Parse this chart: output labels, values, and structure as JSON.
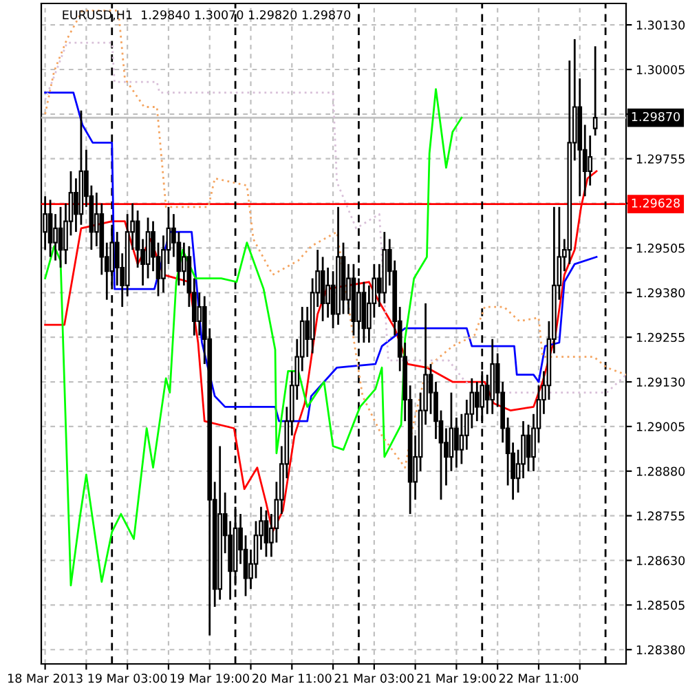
{
  "chart_data": {
    "type": "candlestick",
    "title": "EURUSD,H1  1.29840 1.30070 1.29820 1.29870",
    "x": [
      "2013-03-18T11:00",
      "2013-03-18T12:00",
      "2013-03-18T13:00",
      "2013-03-18T14:00",
      "2013-03-18T15:00",
      "2013-03-18T16:00",
      "2013-03-18T17:00",
      "2013-03-18T18:00",
      "2013-03-18T19:00",
      "2013-03-18T20:00",
      "2013-03-18T21:00",
      "2013-03-18T22:00",
      "2013-03-18T23:00",
      "2013-03-19T00:00",
      "2013-03-19T01:00",
      "2013-03-19T02:00",
      "2013-03-19T03:00",
      "2013-03-19T04:00",
      "2013-03-19T05:00",
      "2013-03-19T06:00",
      "2013-03-19T07:00",
      "2013-03-19T08:00",
      "2013-03-19T09:00",
      "2013-03-19T10:00",
      "2013-03-19T11:00",
      "2013-03-19T12:00",
      "2013-03-19T13:00",
      "2013-03-19T14:00",
      "2013-03-19T15:00",
      "2013-03-19T16:00",
      "2013-03-19T17:00",
      "2013-03-19T18:00",
      "2013-03-19T19:00",
      "2013-03-19T20:00",
      "2013-03-19T21:00",
      "2013-03-19T22:00",
      "2013-03-19T23:00",
      "2013-03-20T00:00",
      "2013-03-20T01:00",
      "2013-03-20T02:00",
      "2013-03-20T03:00",
      "2013-03-20T04:00",
      "2013-03-20T05:00",
      "2013-03-20T06:00",
      "2013-03-20T07:00",
      "2013-03-20T08:00",
      "2013-03-20T09:00",
      "2013-03-20T10:00",
      "2013-03-20T11:00",
      "2013-03-20T12:00",
      "2013-03-20T13:00",
      "2013-03-20T14:00",
      "2013-03-20T15:00",
      "2013-03-20T16:00",
      "2013-03-20T17:00",
      "2013-03-20T18:00",
      "2013-03-20T19:00",
      "2013-03-20T20:00",
      "2013-03-20T21:00",
      "2013-03-20T22:00",
      "2013-03-20T23:00",
      "2013-03-21T00:00",
      "2013-03-21T01:00",
      "2013-03-21T02:00",
      "2013-03-21T03:00",
      "2013-03-21T04:00",
      "2013-03-21T05:00",
      "2013-03-21T06:00",
      "2013-03-21T07:00",
      "2013-03-21T08:00",
      "2013-03-21T09:00",
      "2013-03-21T10:00",
      "2013-03-21T11:00",
      "2013-03-21T12:00",
      "2013-03-21T13:00",
      "2013-03-21T14:00",
      "2013-03-21T15:00",
      "2013-03-21T16:00",
      "2013-03-21T17:00",
      "2013-03-21T18:00",
      "2013-03-21T19:00",
      "2013-03-21T20:00",
      "2013-03-21T21:00",
      "2013-03-21T22:00",
      "2013-03-21T23:00",
      "2013-03-22T00:00",
      "2013-03-22T01:00",
      "2013-03-22T02:00",
      "2013-03-22T03:00",
      "2013-03-22T04:00",
      "2013-03-22T05:00",
      "2013-03-22T06:00",
      "2013-03-22T07:00",
      "2013-03-22T08:00",
      "2013-03-22T09:00",
      "2013-03-22T10:00",
      "2013-03-22T11:00",
      "2013-03-22T12:00",
      "2013-03-22T13:00",
      "2013-03-22T14:00",
      "2013-03-22T15:00",
      "2013-03-22T16:00",
      "2013-03-22T17:00",
      "2013-03-22T18:00",
      "2013-03-22T19:00",
      "2013-03-22T20:00",
      "2013-03-22T21:00",
      "2013-03-22T22:00"
    ],
    "ohlc": [
      [
        1.2955,
        1.2965,
        1.295,
        1.296
      ],
      [
        1.296,
        1.2964,
        1.2948,
        1.2952
      ],
      [
        1.2952,
        1.296,
        1.2947,
        1.2956
      ],
      [
        1.2956,
        1.2962,
        1.2945,
        1.295
      ],
      [
        1.295,
        1.2963,
        1.2946,
        1.2958
      ],
      [
        1.2958,
        1.2972,
        1.2954,
        1.2966
      ],
      [
        1.2966,
        1.297,
        1.2955,
        1.296
      ],
      [
        1.296,
        1.2989,
        1.2957,
        1.2972
      ],
      [
        1.2972,
        1.2978,
        1.2962,
        1.2965
      ],
      [
        1.2965,
        1.2968,
        1.295,
        1.2955
      ],
      [
        1.2955,
        1.2966,
        1.2951,
        1.296
      ],
      [
        1.296,
        1.2963,
        1.2943,
        1.2948
      ],
      [
        1.2948,
        1.2952,
        1.2936,
        1.2944
      ],
      [
        1.2944,
        1.2957,
        1.294,
        1.2952
      ],
      [
        1.2952,
        1.2955,
        1.294,
        1.2945
      ],
      [
        1.2945,
        1.2949,
        1.2934,
        1.294
      ],
      [
        1.294,
        1.296,
        1.2937,
        1.2955
      ],
      [
        1.2955,
        1.2963,
        1.295,
        1.2958
      ],
      [
        1.2958,
        1.2961,
        1.2945,
        1.295
      ],
      [
        1.295,
        1.2953,
        1.294,
        1.2946
      ],
      [
        1.2946,
        1.2959,
        1.2942,
        1.2955
      ],
      [
        1.2955,
        1.2958,
        1.2944,
        1.2948
      ],
      [
        1.2948,
        1.2952,
        1.2937,
        1.2942
      ],
      [
        1.2942,
        1.2954,
        1.2938,
        1.295
      ],
      [
        1.295,
        1.2962,
        1.2946,
        1.2956
      ],
      [
        1.2956,
        1.296,
        1.2948,
        1.2952
      ],
      [
        1.2952,
        1.2955,
        1.294,
        1.2944
      ],
      [
        1.2944,
        1.2952,
        1.294,
        1.2948
      ],
      [
        1.2948,
        1.2951,
        1.2934,
        1.2938
      ],
      [
        1.2938,
        1.2942,
        1.2926,
        1.293
      ],
      [
        1.293,
        1.2938,
        1.2926,
        1.2934
      ],
      [
        1.2934,
        1.2937,
        1.2918,
        1.2925
      ],
      [
        1.2925,
        1.2928,
        1.2842,
        1.288
      ],
      [
        1.288,
        1.2885,
        1.285,
        1.2855
      ],
      [
        1.2855,
        1.2895,
        1.2852,
        1.2876
      ],
      [
        1.2876,
        1.2882,
        1.2865,
        1.287
      ],
      [
        1.287,
        1.2874,
        1.2852,
        1.286
      ],
      [
        1.286,
        1.2878,
        1.2856,
        1.2872
      ],
      [
        1.2872,
        1.2876,
        1.2862,
        1.2866
      ],
      [
        1.2866,
        1.287,
        1.2853,
        1.2858
      ],
      [
        1.2858,
        1.2866,
        1.2855,
        1.2862
      ],
      [
        1.2862,
        1.2874,
        1.2858,
        1.287
      ],
      [
        1.287,
        1.2878,
        1.2866,
        1.2874
      ],
      [
        1.2874,
        1.2877,
        1.2864,
        1.2868
      ],
      [
        1.2868,
        1.2876,
        1.2864,
        1.2872
      ],
      [
        1.2872,
        1.2885,
        1.2868,
        1.288
      ],
      [
        1.288,
        1.2895,
        1.2876,
        1.289
      ],
      [
        1.289,
        1.2906,
        1.2886,
        1.2902
      ],
      [
        1.2902,
        1.2916,
        1.2898,
        1.2912
      ],
      [
        1.2912,
        1.2925,
        1.2908,
        1.292
      ],
      [
        1.292,
        1.2934,
        1.2916,
        1.293
      ],
      [
        1.293,
        1.2934,
        1.292,
        1.2925
      ],
      [
        1.2925,
        1.2942,
        1.2921,
        1.2938
      ],
      [
        1.2938,
        1.295,
        1.2934,
        1.2944
      ],
      [
        1.2944,
        1.2948,
        1.293,
        1.2935
      ],
      [
        1.2935,
        1.2945,
        1.2931,
        1.294
      ],
      [
        1.294,
        1.2944,
        1.2928,
        1.2932
      ],
      [
        1.2932,
        1.2962,
        1.2929,
        1.2948
      ],
      [
        1.2948,
        1.2952,
        1.2932,
        1.2936
      ],
      [
        1.2936,
        1.2946,
        1.2932,
        1.2942
      ],
      [
        1.2942,
        1.2946,
        1.2926,
        1.293
      ],
      [
        1.293,
        1.2942,
        1.2926,
        1.2938
      ],
      [
        1.2938,
        1.2941,
        1.2924,
        1.2928
      ],
      [
        1.2928,
        1.294,
        1.2924,
        1.2935
      ],
      [
        1.2935,
        1.2946,
        1.2931,
        1.2942
      ],
      [
        1.2942,
        1.2946,
        1.2934,
        1.2938
      ],
      [
        1.2938,
        1.2955,
        1.2935,
        1.295
      ],
      [
        1.295,
        1.2953,
        1.294,
        1.2944
      ],
      [
        1.2944,
        1.2947,
        1.2926,
        1.293
      ],
      [
        1.293,
        1.2934,
        1.2916,
        1.292
      ],
      [
        1.292,
        1.2924,
        1.2902,
        1.2908
      ],
      [
        1.2908,
        1.2912,
        1.2876,
        1.2885
      ],
      [
        1.2885,
        1.2898,
        1.288,
        1.2892
      ],
      [
        1.2892,
        1.291,
        1.2888,
        1.2905
      ],
      [
        1.2905,
        1.2935,
        1.2901,
        1.2915
      ],
      [
        1.2915,
        1.2918,
        1.2904,
        1.291
      ],
      [
        1.291,
        1.2913,
        1.2897,
        1.2902
      ],
      [
        1.2902,
        1.2905,
        1.288,
        1.2896
      ],
      [
        1.2896,
        1.29,
        1.2884,
        1.2892
      ],
      [
        1.2892,
        1.291,
        1.2888,
        1.29
      ],
      [
        1.29,
        1.2903,
        1.2889,
        1.2894
      ],
      [
        1.2894,
        1.2904,
        1.289,
        1.2898
      ],
      [
        1.2898,
        1.2908,
        1.2894,
        1.2904
      ],
      [
        1.2904,
        1.2914,
        1.29,
        1.291
      ],
      [
        1.291,
        1.2913,
        1.2902,
        1.2906
      ],
      [
        1.2906,
        1.2916,
        1.2902,
        1.2912
      ],
      [
        1.2912,
        1.2915,
        1.2904,
        1.2908
      ],
      [
        1.2908,
        1.2925,
        1.2904,
        1.2918
      ],
      [
        1.2918,
        1.2921,
        1.2906,
        1.291
      ],
      [
        1.291,
        1.2913,
        1.2896,
        1.29
      ],
      [
        1.29,
        1.2903,
        1.2884,
        1.2893
      ],
      [
        1.2893,
        1.2896,
        1.288,
        1.2886
      ],
      [
        1.2886,
        1.2894,
        1.2882,
        1.289
      ],
      [
        1.289,
        1.2902,
        1.2886,
        1.2898
      ],
      [
        1.2898,
        1.2901,
        1.2888,
        1.2892
      ],
      [
        1.2892,
        1.2904,
        1.2888,
        1.29
      ],
      [
        1.29,
        1.2912,
        1.2896,
        1.2908
      ],
      [
        1.2908,
        1.2916,
        1.2904,
        1.2912
      ],
      [
        1.2912,
        1.293,
        1.2908,
        1.2925
      ],
      [
        1.2925,
        1.2962,
        1.2921,
        1.294
      ],
      [
        1.294,
        1.2962,
        1.2936,
        1.2948
      ],
      [
        1.2948,
        1.2953,
        1.2944,
        1.295
      ],
      [
        1.295,
        1.3003,
        1.2946,
        1.298
      ],
      [
        1.298,
        1.3009,
        1.2975,
        1.299
      ],
      [
        1.299,
        1.2998,
        1.2965,
        1.2978
      ],
      [
        1.2978,
        1.2985,
        1.2965,
        1.2972
      ],
      [
        1.2972,
        1.2982,
        1.2968,
        1.2976
      ],
      [
        1.2984,
        1.3007,
        1.2982,
        1.2987
      ]
    ],
    "series": [
      {
        "type": "line",
        "color": "#ff0000",
        "x": [
          "2013-03-18T11:00",
          "2013-03-18T14:45",
          "2013-03-18T18:00",
          "2013-03-19T00:00",
          "2013-03-19T02:30",
          "2013-03-19T05:00",
          "2013-03-19T07:30",
          "2013-03-19T10:00",
          "2013-03-19T15:00",
          "2013-03-19T16:45",
          "2013-03-19T18:00",
          "2013-03-19T23:45",
          "2013-03-20T01:45",
          "2013-03-20T04:15",
          "2013-03-20T06:00",
          "2013-03-20T07:15",
          "2013-03-20T09:15",
          "2013-03-20T11:30",
          "2013-03-20T13:30",
          "2013-03-20T16:00",
          "2013-03-20T17:45",
          "2013-03-21T02:00",
          "2013-03-21T03:45",
          "2013-03-21T07:00",
          "2013-03-21T09:30",
          "2013-03-21T13:15",
          "2013-03-21T18:15",
          "2013-03-22T00:30",
          "2013-03-22T02:15",
          "2013-03-22T05:30",
          "2013-03-22T10:00",
          "2013-03-22T11:45",
          "2013-03-22T14:15",
          "2013-03-22T16:00",
          "2013-03-22T18:00",
          "2013-03-22T19:15",
          "2013-03-22T20:30",
          "2013-03-22T22:15"
        ],
        "values": [
          1.2929,
          1.2929,
          1.2956,
          1.2958,
          1.2958,
          1.2946,
          1.2953,
          1.2943,
          1.2941,
          1.2924,
          1.2902,
          1.29,
          1.2883,
          1.2889,
          1.2879,
          1.2871,
          1.2877,
          1.2898,
          1.2907,
          1.2932,
          1.2939,
          1.2941,
          1.2936,
          1.2928,
          1.2918,
          1.2917,
          1.2913,
          1.2913,
          1.2907,
          1.2905,
          1.2906,
          1.2913,
          1.2926,
          1.2943,
          1.295,
          1.2962,
          1.297,
          1.2972
        ]
      },
      {
        "type": "line",
        "color": "#0000ff",
        "x": [
          "2013-03-18T11:00",
          "2013-03-18T16:30",
          "2013-03-18T18:15",
          "2013-03-18T20:15",
          "2013-03-19T00:00",
          "2013-03-19T00:30",
          "2013-03-19T08:15",
          "2013-03-19T11:15",
          "2013-03-19T15:30",
          "2013-03-19T17:30",
          "2013-03-19T20:00",
          "2013-03-19T22:00",
          "2013-03-20T07:45",
          "2013-03-20T08:30",
          "2013-03-20T14:00",
          "2013-03-20T14:45",
          "2013-03-20T19:45",
          "2013-03-21T03:15",
          "2013-03-21T04:30",
          "2013-03-21T09:00",
          "2013-03-21T21:00",
          "2013-03-21T22:00",
          "2013-03-22T06:15",
          "2013-03-22T06:45",
          "2013-03-22T10:00",
          "2013-03-22T11:00",
          "2013-03-22T12:15",
          "2013-03-22T15:00",
          "2013-03-22T16:00",
          "2013-03-22T18:00",
          "2013-03-22T22:15"
        ],
        "values": [
          1.2994,
          1.2994,
          1.2985,
          1.298,
          1.298,
          1.2939,
          1.2939,
          1.2955,
          1.2955,
          1.2924,
          1.2909,
          1.2906,
          1.2906,
          1.2902,
          1.2902,
          1.2909,
          1.2917,
          1.2918,
          1.2923,
          1.2928,
          1.2928,
          1.2923,
          1.2923,
          1.2915,
          1.2915,
          1.2913,
          1.2923,
          1.2924,
          1.2941,
          1.2946,
          1.2948
        ]
      },
      {
        "type": "line",
        "color": "#00ff00",
        "x": [
          "2013-03-18T11:00",
          "2013-03-18T12:45",
          "2013-03-18T14:00",
          "2013-03-18T14:30",
          "2013-03-18T16:00",
          "2013-03-18T17:45",
          "2013-03-18T19:00",
          "2013-03-18T22:00",
          "2013-03-19T00:00",
          "2013-03-19T01:45",
          "2013-03-19T04:15",
          "2013-03-19T06:45",
          "2013-03-19T08:00",
          "2013-03-19T10:30",
          "2013-03-19T11:15",
          "2013-03-19T12:30",
          "2013-03-19T13:45",
          "2013-03-19T16:15",
          "2013-03-19T21:15",
          "2013-03-20T00:15",
          "2013-03-20T02:15",
          "2013-03-20T05:30",
          "2013-03-20T07:45",
          "2013-03-20T08:00",
          "2013-03-20T10:15",
          "2013-03-20T12:15",
          "2013-03-20T14:00",
          "2013-03-20T17:15",
          "2013-03-20T19:00",
          "2013-03-20T21:00",
          "2013-03-21T00:15",
          "2013-03-21T03:15",
          "2013-03-21T04:30",
          "2013-03-21T05:00",
          "2013-03-21T08:15",
          "2013-03-21T09:00",
          "2013-03-21T10:45",
          "2013-03-21T13:15",
          "2013-03-21T13:45",
          "2013-03-21T15:00",
          "2013-03-21T17:00",
          "2013-03-21T18:15",
          "2013-03-21T20:00"
        ],
        "values": [
          1.2942,
          1.2951,
          1.2947,
          1.2924,
          1.2856,
          1.2875,
          1.2887,
          1.2857,
          1.2871,
          1.2876,
          1.2869,
          1.29,
          1.2889,
          1.2914,
          1.291,
          1.2941,
          1.295,
          1.2942,
          1.2942,
          1.2941,
          1.2952,
          1.2939,
          1.2922,
          1.2893,
          1.2916,
          1.2916,
          1.2906,
          1.2913,
          1.2895,
          1.2894,
          1.2906,
          1.2911,
          1.2917,
          1.2892,
          1.2901,
          1.2925,
          1.2942,
          1.2948,
          1.2977,
          1.2995,
          1.2973,
          1.2983,
          1.2987
        ]
      },
      {
        "type": "line",
        "color": "#f4a460",
        "line_style": "dotted",
        "x": [
          "2013-03-18T11:00",
          "2013-03-18T12:45",
          "2013-03-18T15:15",
          "2013-03-18T18:15",
          "2013-03-19T01:15",
          "2013-03-19T02:30",
          "2013-03-19T06:15",
          "2013-03-19T08:45",
          "2013-03-19T10:30",
          "2013-03-19T18:45",
          "2013-03-19T20:00",
          "2013-03-20T02:15",
          "2013-03-20T03:30",
          "2013-03-20T07:15",
          "2013-03-20T12:15",
          "2013-03-20T14:45",
          "2013-03-20T19:45",
          "2013-03-21T00:45",
          "2013-03-21T04:30",
          "2013-03-21T09:00",
          "2013-03-21T10:45",
          "2013-03-21T13:15",
          "2013-03-21T18:15",
          "2013-03-21T22:30",
          "2013-03-22T00:30",
          "2013-03-22T04:15",
          "2013-03-22T07:15",
          "2013-03-22T11:00",
          "2013-03-22T11:45",
          "2013-03-22T21:45",
          "2013-03-23T00:15",
          "2013-03-23T04:00"
        ],
        "values": [
          1.2988,
          1.3,
          1.3009,
          1.3017,
          1.3017,
          1.2998,
          1.299,
          1.299,
          1.2962,
          1.2962,
          1.297,
          1.2968,
          1.2953,
          1.2943,
          1.2947,
          1.2951,
          1.2955,
          1.2909,
          1.2898,
          1.2889,
          1.2902,
          1.2917,
          1.2923,
          1.2926,
          1.2934,
          1.2934,
          1.293,
          1.2931,
          1.292,
          1.292,
          1.2917,
          1.2915
        ]
      },
      {
        "type": "line",
        "color": "#d8bfd8",
        "line_style": "dotted",
        "x": [
          "2013-03-18T11:00",
          "2013-03-18T15:15",
          "2013-03-19T00:00",
          "2013-03-19T00:30",
          "2013-03-19T08:45",
          "2013-03-19T09:15",
          "2013-03-20T19:00",
          "2013-03-20T19:45",
          "2013-03-20T23:30",
          "2013-03-21T04:00",
          "2013-03-21T05:45",
          "2013-03-21T17:30",
          "2013-03-21T20:45",
          "2013-03-22T01:00",
          "2013-03-22T11:00",
          "2013-03-23T00:15",
          "2013-03-23T04:00"
        ],
        "values": [
          1.2992,
          1.3008,
          1.3008,
          1.2997,
          1.2997,
          1.2994,
          1.2994,
          1.2969,
          1.2956,
          1.296,
          1.2919,
          1.2919,
          1.2913,
          1.291,
          1.291,
          1.291,
          1.2915
        ]
      }
    ],
    "xlim": [
      "2013-03-18T10:15",
      "2013-03-23T04:00"
    ],
    "xticks": [
      {
        "value": "2013-03-18T11:00",
        "label": "18 Mar 2013"
      },
      {
        "value": "2013-03-18T19:00",
        "label": null
      },
      {
        "value": "2013-03-19T03:00",
        "label": "19 Mar 03:00"
      },
      {
        "value": "2013-03-19T11:00",
        "label": null
      },
      {
        "value": "2013-03-19T19:00",
        "label": "19 Mar 19:00"
      },
      {
        "value": "2013-03-20T03:00",
        "label": null
      },
      {
        "value": "2013-03-20T11:00",
        "label": "20 Mar 11:00"
      },
      {
        "value": "2013-03-20T19:00",
        "label": null
      },
      {
        "value": "2013-03-21T03:00",
        "label": "21 Mar 03:00"
      },
      {
        "value": "2013-03-21T11:00",
        "label": null
      },
      {
        "value": "2013-03-21T19:00",
        "label": "21 Mar 19:00"
      },
      {
        "value": "2013-03-22T03:00",
        "label": null
      },
      {
        "value": "2013-03-22T11:00",
        "label": "22 Mar 11:00"
      },
      {
        "value": "2013-03-22T19:00",
        "label": null
      }
    ],
    "ylim": [
      1.2834,
      1.3019
    ],
    "yticks": [
      {
        "value": 1.2838,
        "label": "1.28380"
      },
      {
        "value": 1.28505,
        "label": "1.28505"
      },
      {
        "value": 1.2863,
        "label": "1.28630"
      },
      {
        "value": 1.28755,
        "label": "1.28755"
      },
      {
        "value": 1.2888,
        "label": "1.28880"
      },
      {
        "value": 1.29005,
        "label": "1.29005"
      },
      {
        "value": 1.2913,
        "label": "1.29130"
      },
      {
        "value": 1.29255,
        "label": "1.29255"
      },
      {
        "value": 1.2938,
        "label": "1.29380"
      },
      {
        "value": 1.29505,
        "label": "1.29505"
      },
      {
        "value": 1.2963,
        "label": null
      },
      {
        "value": 1.29755,
        "label": "1.29755"
      },
      {
        "value": 1.2988,
        "label": null
      },
      {
        "value": 1.30005,
        "label": "1.30005"
      },
      {
        "value": 1.3013,
        "label": "1.30130"
      }
    ],
    "ref_lines": [
      {
        "axis": "y",
        "value": 1.29628,
        "label": "1.29628",
        "color": "#ff0000"
      },
      {
        "axis": "y",
        "value": 1.2987,
        "label": "1.29870",
        "color": "#c0c0c0"
      },
      {
        "axis": "x",
        "value": "2013-03-19T00:00",
        "color": "#000000",
        "line_style": "dashed"
      },
      {
        "axis": "x",
        "value": "2013-03-20T00:00",
        "color": "#000000",
        "line_style": "dashed"
      },
      {
        "axis": "x",
        "value": "2013-03-21T00:00",
        "color": "#000000",
        "line_style": "dashed"
      },
      {
        "axis": "x",
        "value": "2013-03-22T00:00",
        "color": "#000000",
        "line_style": "dashed"
      },
      {
        "axis": "x",
        "value": "2013-03-23T00:00",
        "color": "#000000",
        "line_style": "dashed"
      }
    ],
    "grid": true,
    "legend": false
  }
}
